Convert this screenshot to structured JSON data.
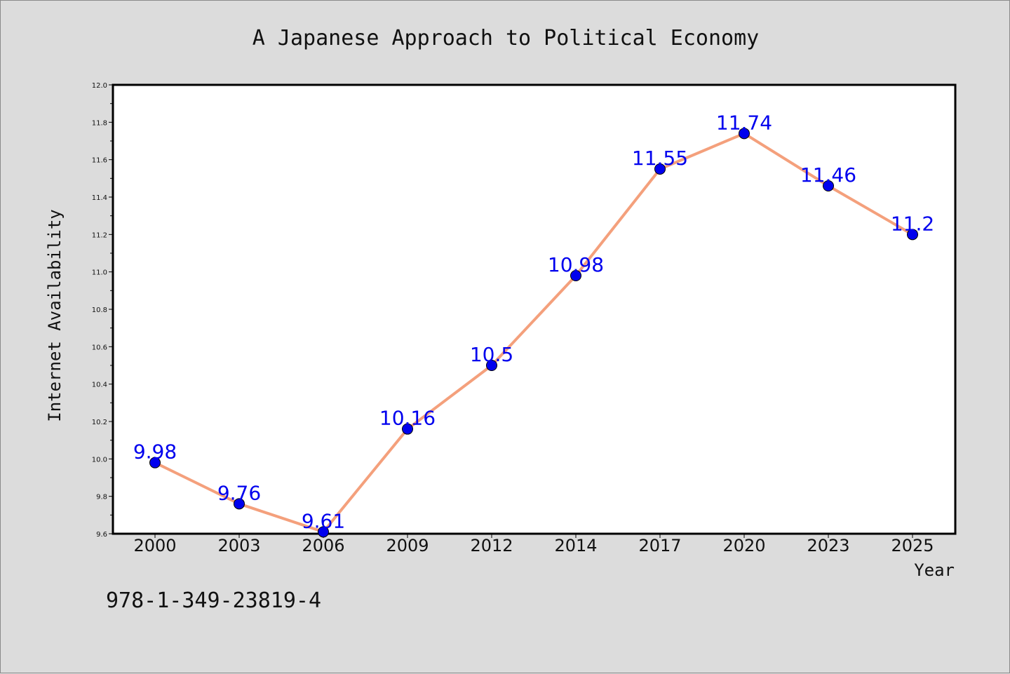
{
  "chart_data": {
    "type": "line",
    "title": "A Japanese Approach to Political Economy",
    "xlabel": "Year",
    "ylabel": "Internet Availability",
    "categories": [
      "2000",
      "2003",
      "2006",
      "2009",
      "2012",
      "2014",
      "2017",
      "2020",
      "2023",
      "2025"
    ],
    "series": [
      {
        "values": [
          9.98,
          9.76,
          9.61,
          10.16,
          10.5,
          10.98,
          11.55,
          11.74,
          11.46,
          11.2
        ],
        "data_labels": [
          "9.98",
          "9.76",
          "9.61",
          "10.16",
          "10.5",
          "10.98",
          "11.55",
          "11.74",
          "11.46",
          "11.2"
        ]
      }
    ],
    "ylim": [
      9.6,
      12.0
    ],
    "yticks": [
      "9.6",
      "9.8",
      "10.0",
      "10.2",
      "10.4",
      "10.6",
      "10.8",
      "11.0",
      "11.2",
      "11.4",
      "11.6",
      "11.8",
      "12.0"
    ],
    "grid": false,
    "legend": false,
    "colors": {
      "line": "#f4a07c",
      "marker": "#0000ee",
      "data_label": "#0000ee",
      "plot_background": "#ffffff",
      "figure_background": "#dcdcdc"
    }
  },
  "footer": {
    "isbn": "978-1-349-23819-4"
  }
}
